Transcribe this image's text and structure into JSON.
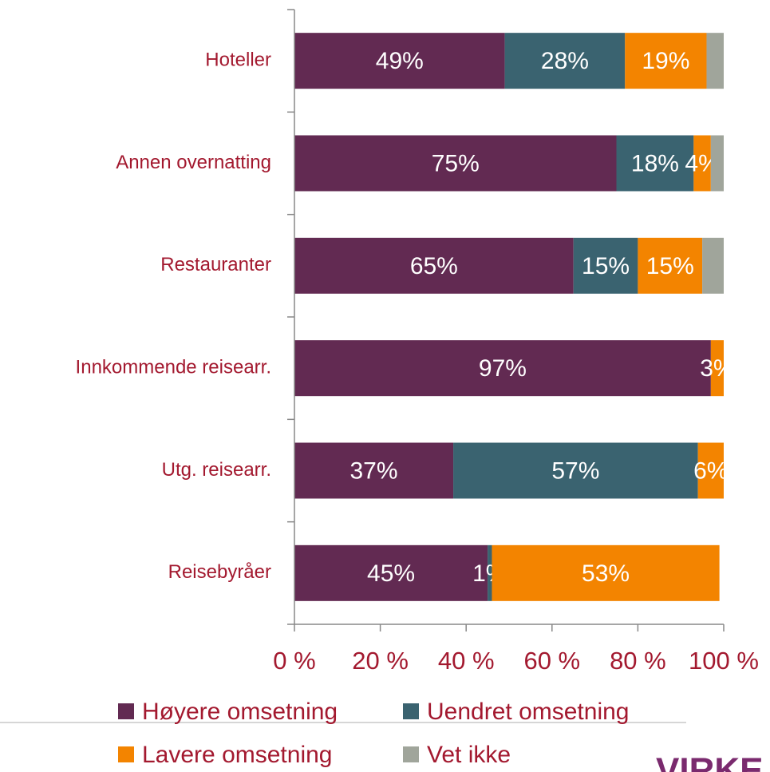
{
  "chart_data": {
    "type": "stacked_bar_horizontal",
    "categories": [
      "Hoteller",
      "Annen overnatting",
      "Restauranter",
      "Innkommende reisearr.",
      "Utg. reisearr.",
      "Reisebyråer"
    ],
    "series": [
      {
        "name": "Høyere omsetning",
        "color": "#622a52",
        "data_labels": true,
        "values": [
          49,
          75,
          65,
          97,
          37,
          45
        ],
        "value_labels": [
          "49%",
          "75%",
          "65%",
          "97%",
          "37%",
          "45%"
        ]
      },
      {
        "name": "Uendret omsetning",
        "color": "#3a6370",
        "data_labels": true,
        "values": [
          28,
          18,
          15,
          null,
          57,
          1
        ],
        "value_labels": [
          "28%",
          "18%",
          "15%",
          null,
          "57%",
          "1%"
        ]
      },
      {
        "name": "Lavere omsetning",
        "color": "#f38400",
        "data_labels": true,
        "values": [
          19,
          4,
          15,
          3,
          6,
          53
        ],
        "value_labels": [
          "19%",
          "4%",
          "15%",
          "3%",
          "6%",
          "53%"
        ]
      },
      {
        "name": "Vet ikke",
        "color": "#a0a59b",
        "data_labels": false,
        "values": [
          4,
          3,
          5,
          null,
          null,
          null
        ]
      }
    ],
    "xlim": [
      0,
      100
    ],
    "xticks": [
      {
        "value": 0,
        "label": "0 %"
      },
      {
        "value": 20,
        "label": "20 %"
      },
      {
        "value": 40,
        "label": "40 %"
      },
      {
        "value": 60,
        "label": "60 %"
      },
      {
        "value": 80,
        "label": "80 %"
      },
      {
        "value": 100,
        "label": "100 %"
      }
    ],
    "legend": "bottom",
    "logo": "VIRKE"
  }
}
